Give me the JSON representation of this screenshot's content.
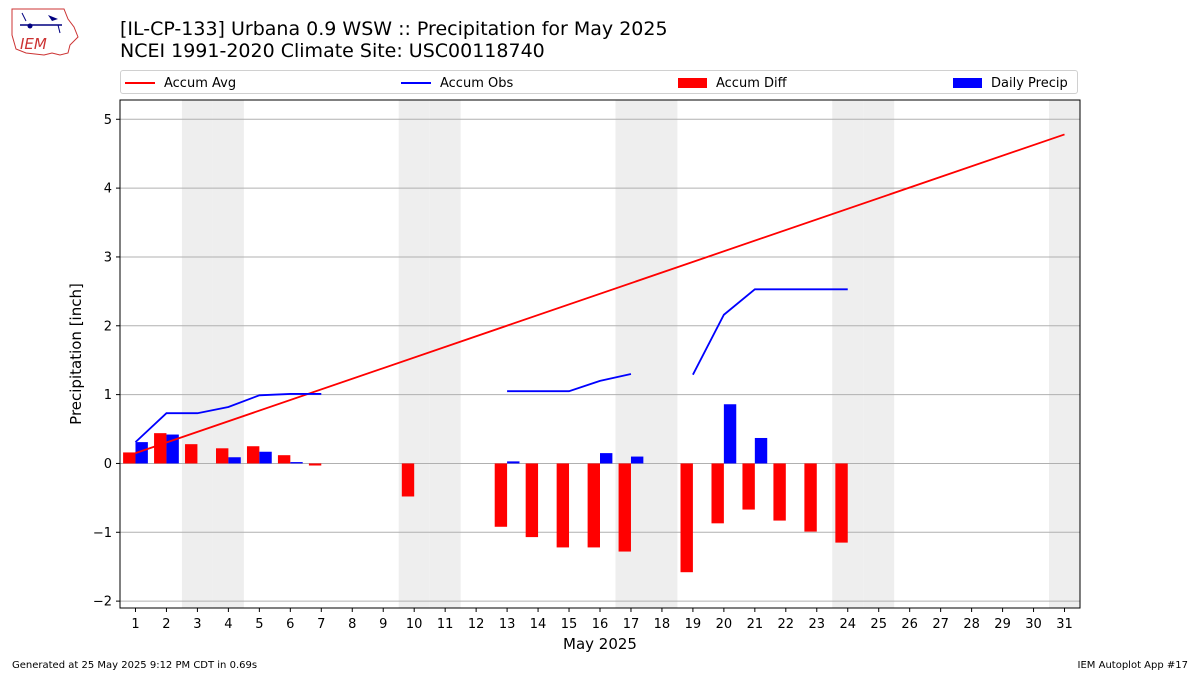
{
  "header": {
    "logo_text": "IEM",
    "title_line1": "[IL-CP-133] Urbana 0.9 WSW :: Precipitation for May 2025",
    "title_line2": "NCEI 1991-2020 Climate Site: USC00118740"
  },
  "legend": {
    "accum_avg": "Accum Avg",
    "accum_obs": "Accum Obs",
    "accum_diff": "Accum Diff",
    "daily_precip": "Daily Precip"
  },
  "colors": {
    "accum_avg": "#ff0000",
    "accum_obs": "#0000ff",
    "accum_diff": "#ff0000",
    "daily_precip": "#0000ff",
    "weekend_shade": "#eeeeee",
    "grid": "#b0b0b0"
  },
  "footer": {
    "generated": "Generated at 25 May 2025 9:12 PM CDT in 0.69s",
    "app": "IEM Autoplot App #17"
  },
  "chart_data": {
    "type": "bar",
    "xlabel": "May 2025",
    "ylabel": "Precipitation [inch]",
    "xlim": [
      0.5,
      31.5
    ],
    "ylim": [
      -2.1,
      5.28
    ],
    "yticks": [
      -2,
      -1,
      0,
      1,
      2,
      3,
      4,
      5
    ],
    "ytick_labels": [
      "−2",
      "−1",
      "0",
      "1",
      "2",
      "3",
      "4",
      "5"
    ],
    "x": [
      1,
      2,
      3,
      4,
      5,
      6,
      7,
      8,
      9,
      10,
      11,
      12,
      13,
      14,
      15,
      16,
      17,
      18,
      19,
      20,
      21,
      22,
      23,
      24,
      25,
      26,
      27,
      28,
      29,
      30,
      31
    ],
    "grid": "horizontal",
    "weekend_days": [
      3,
      4,
      10,
      11,
      17,
      18,
      24,
      25,
      31
    ],
    "series": [
      {
        "name": "Accum Avg",
        "kind": "line",
        "x": [
          1,
          31
        ],
        "values": [
          0.15,
          4.78
        ]
      },
      {
        "name": "Accum Obs",
        "kind": "line",
        "segments": [
          {
            "x": [
              1,
              2,
              3,
              4,
              5,
              6,
              7
            ],
            "values": [
              0.31,
              0.73,
              0.73,
              0.82,
              0.99,
              1.01,
              1.01
            ]
          },
          {
            "x": [
              13,
              14,
              15,
              16,
              17
            ],
            "values": [
              1.05,
              1.05,
              1.05,
              1.2,
              1.3
            ]
          },
          {
            "x": [
              19,
              20,
              21,
              22,
              23,
              24
            ],
            "values": [
              1.29,
              2.16,
              2.53,
              2.53,
              2.53,
              2.53
            ]
          }
        ]
      },
      {
        "name": "Accum Diff",
        "kind": "bar",
        "x": [
          1,
          2,
          3,
          4,
          5,
          6,
          7,
          10,
          13,
          14,
          15,
          16,
          17,
          19,
          20,
          21,
          22,
          23,
          24
        ],
        "values": [
          0.16,
          0.44,
          0.28,
          0.22,
          0.25,
          0.12,
          -0.03,
          -0.48,
          -0.92,
          -1.07,
          -1.22,
          -1.22,
          -1.28,
          -1.58,
          -0.87,
          -0.67,
          -0.83,
          -0.99,
          -1.15
        ]
      },
      {
        "name": "Daily Precip",
        "kind": "bar",
        "x": [
          1,
          2,
          3,
          4,
          5,
          6,
          7,
          13,
          16,
          17,
          20,
          21
        ],
        "values": [
          0.31,
          0.42,
          0.0,
          0.09,
          0.17,
          0.02,
          0.0,
          0.03,
          0.15,
          0.1,
          0.86,
          0.37
        ]
      }
    ]
  }
}
